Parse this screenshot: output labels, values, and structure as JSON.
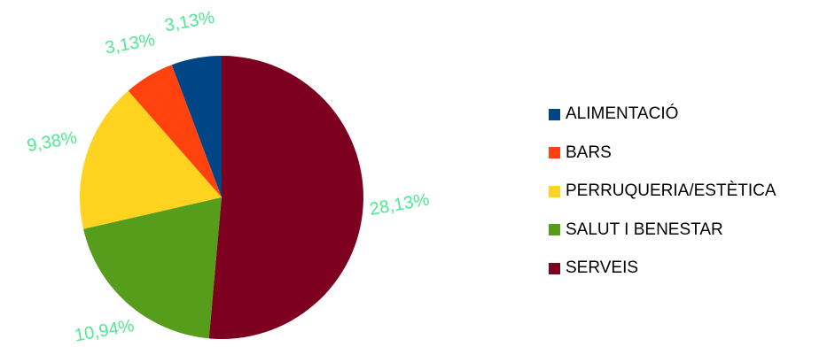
{
  "chart_data": {
    "type": "pie",
    "categories": [
      "ALIMENTACIÓ",
      "BARS",
      "PERRUQUERIA/ESTÈTICA",
      "SALUT I BENESTAR",
      "SERVEIS"
    ],
    "values": [
      3.13,
      3.13,
      9.38,
      10.94,
      28.13
    ],
    "data_labels": [
      "3,13%",
      "3,13%",
      "9,38%",
      "10,94%",
      "28,13%"
    ],
    "colors": [
      "#004586",
      "#ff420e",
      "#ffd320",
      "#579d1c",
      "#7e0021"
    ],
    "label_color": "#50e890",
    "legend_position": "right",
    "start": "top",
    "direction": "counterclockwise"
  }
}
